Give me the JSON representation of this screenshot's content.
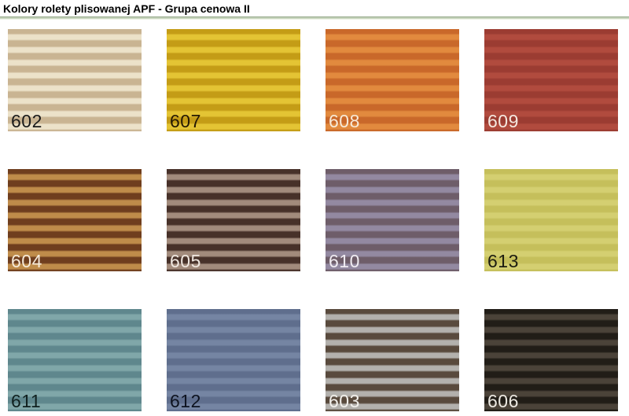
{
  "page": {
    "title": "Kolory rolety plisowanej APF - Grupa cenowa II"
  },
  "divider": {
    "color": "#8fa383"
  },
  "swatches": [
    {
      "code": "602",
      "light": "#ece2c9",
      "dark": "#c9b492",
      "label_color": "#1a1a1a"
    },
    {
      "code": "607",
      "light": "#e4c434",
      "dark": "#c49c16",
      "label_color": "#241803"
    },
    {
      "code": "608",
      "light": "#e28a3e",
      "dark": "#c9682a",
      "label_color": "#f7ead8"
    },
    {
      "code": "609",
      "light": "#b14b3e",
      "dark": "#9b3c32",
      "label_color": "#f5e8e0"
    },
    {
      "code": "604",
      "light": "#bf8c4a",
      "dark": "#6f3e1e",
      "label_color": "#f5ead9"
    },
    {
      "code": "605",
      "light": "#a28b7c",
      "dark": "#473129",
      "label_color": "#efe7e0"
    },
    {
      "code": "610",
      "light": "#9389a1",
      "dark": "#6e5d69",
      "label_color": "#f0ecf2"
    },
    {
      "code": "613",
      "light": "#d4cf71",
      "dark": "#c5bf5b",
      "label_color": "#1c1c10"
    },
    {
      "code": "611",
      "light": "#80a7a9",
      "dark": "#5f878d",
      "label_color": "#10201f"
    },
    {
      "code": "612",
      "light": "#7585a3",
      "dark": "#5f6e8d",
      "label_color": "#0e1320"
    },
    {
      "code": "603",
      "light": "#b3b1ad",
      "dark": "#594a3d",
      "label_color": "#f2f0ec"
    },
    {
      "code": "606",
      "light": "#4b4339",
      "dark": "#211d17",
      "label_color": "#ece9e2"
    }
  ]
}
